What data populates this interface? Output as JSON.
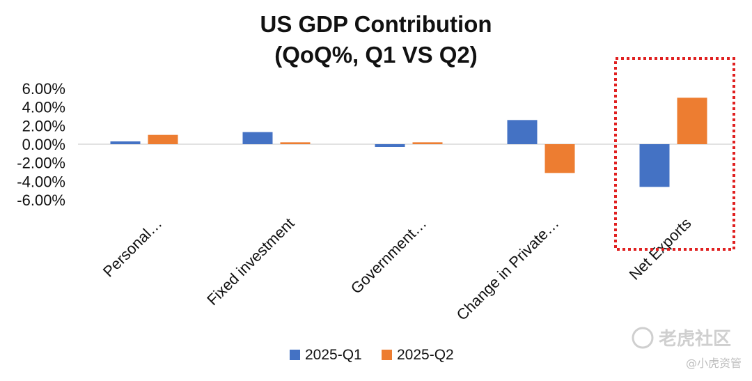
{
  "chart_data": {
    "type": "bar",
    "title_line1": "US GDP Contribution",
    "title_line2": "(QoQ%, Q1 VS Q2)",
    "categories": [
      "Personal…",
      "Fixed investment",
      "Government…",
      "Change in Private…",
      "Net Exports"
    ],
    "series": [
      {
        "name": "2025-Q1",
        "color": "#4472C4",
        "values": [
          0.003,
          0.013,
          -0.003,
          0.026,
          -0.046
        ]
      },
      {
        "name": "2025-Q2",
        "color": "#ED7D31",
        "values": [
          0.01,
          0.002,
          0.002,
          -0.031,
          0.05
        ]
      }
    ],
    "yticks": [
      "6.00%",
      "4.00%",
      "2.00%",
      "0.00%",
      "-2.00%",
      "-4.00%",
      "-6.00%"
    ],
    "ylim": [
      -0.06,
      0.06
    ],
    "grid": false,
    "legend_position": "bottom",
    "highlight": {
      "category": "Net Exports",
      "color": "#E02020",
      "style": "dotted"
    }
  },
  "watermark": {
    "brand": "老虎社区",
    "handle": "@小虎资管"
  }
}
